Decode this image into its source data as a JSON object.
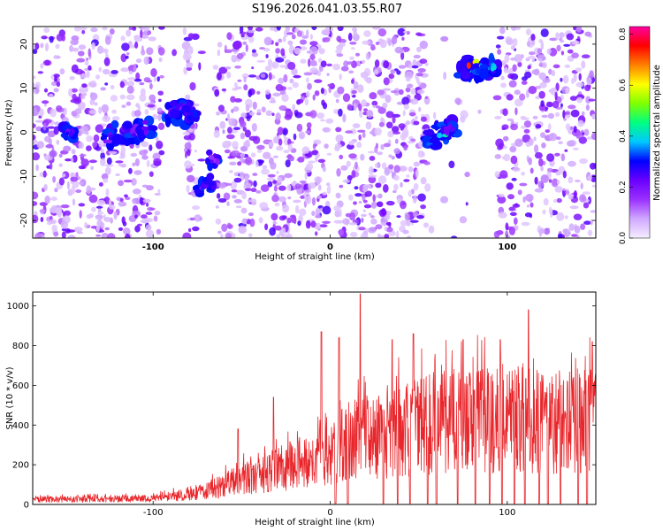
{
  "title": "S196.2026.041.03.55.R07",
  "chart_data": [
    {
      "type": "heatmap",
      "xlabel": "Height of straight line (km)",
      "ylabel": "Frequency (Hz)",
      "xlim": [
        -168,
        150
      ],
      "ylim": [
        -24,
        24
      ],
      "xticks": [
        -100,
        0,
        100
      ],
      "yticks": [
        -20,
        -10,
        0,
        10,
        20
      ],
      "colorbar": {
        "label": "Normalized spectral amplitude",
        "range": [
          0,
          0.83
        ],
        "ticks": [
          0.0,
          0.2,
          0.4,
          0.6,
          0.8
        ],
        "colormap": [
          "#f5eeff",
          "#d0a8ff",
          "#9b30ff",
          "#6a00ff",
          "#0000ff",
          "#00c8ff",
          "#00ff80",
          "#80ff00",
          "#ffff00",
          "#ff8000",
          "#ff0000",
          "#ff00a0"
        ]
      },
      "gaps_km": [
        [
          -95,
          -82
        ],
        [
          -75,
          -65
        ],
        [
          0,
          3
        ],
        [
          55,
          72
        ],
        [
          73,
          94
        ]
      ],
      "hotspots": [
        {
          "x": -148,
          "y": 0,
          "v": 0.3
        },
        {
          "x": -125,
          "y": -1,
          "v": 0.28
        },
        {
          "x": -118,
          "y": 0,
          "v": 0.3
        },
        {
          "x": -110,
          "y": 0,
          "v": 0.27
        },
        {
          "x": -103,
          "y": 1,
          "v": 0.28
        },
        {
          "x": -90,
          "y": 4,
          "v": 0.32
        },
        {
          "x": -84,
          "y": 5,
          "v": 0.28
        },
        {
          "x": -80,
          "y": 3,
          "v": 0.3
        },
        {
          "x": -70,
          "y": -12,
          "v": 0.32
        },
        {
          "x": -65,
          "y": -6,
          "v": 0.25
        },
        {
          "x": 58,
          "y": -2,
          "v": 0.4
        },
        {
          "x": 63,
          "y": 0,
          "v": 0.45
        },
        {
          "x": 68,
          "y": 1,
          "v": 0.3
        },
        {
          "x": 76,
          "y": 14,
          "v": 0.45
        },
        {
          "x": 80,
          "y": 15,
          "v": 0.82
        },
        {
          "x": 86,
          "y": 14,
          "v": 0.5
        },
        {
          "x": 91,
          "y": 15,
          "v": 0.4
        }
      ]
    },
    {
      "type": "line",
      "xlabel": "Height of straight line (km)",
      "ylabel": "SNR (10 * v/v)",
      "xlim": [
        -168,
        150
      ],
      "ylim": [
        0,
        1070
      ],
      "xticks": [
        -100,
        0,
        100
      ],
      "yticks": [
        0,
        200,
        400,
        600,
        800,
        1000
      ],
      "color": "#e8262b",
      "envelope_x": [
        -168,
        -100,
        -85,
        -70,
        -60,
        -50,
        -40,
        -30,
        -20,
        -10,
        0,
        10,
        20,
        30,
        40,
        50,
        60,
        70,
        80,
        90,
        100,
        110,
        120,
        130,
        140,
        150
      ],
      "envelope_mean": [
        25,
        30,
        45,
        70,
        100,
        130,
        150,
        190,
        200,
        210,
        250,
        330,
        350,
        360,
        380,
        410,
        420,
        430,
        440,
        440,
        430,
        450,
        430,
        440,
        430,
        430
      ],
      "peaks": [
        {
          "x": -52,
          "y": 380
        },
        {
          "x": -32,
          "y": 540
        },
        {
          "x": -5,
          "y": 870
        },
        {
          "x": 5,
          "y": 840
        },
        {
          "x": 17,
          "y": 1060
        },
        {
          "x": 35,
          "y": 830
        },
        {
          "x": 47,
          "y": 860
        },
        {
          "x": 75,
          "y": 830
        },
        {
          "x": 96,
          "y": 830
        },
        {
          "x": 112,
          "y": 980
        },
        {
          "x": 148,
          "y": 820
        }
      ],
      "dips_km": [
        3,
        10,
        30,
        38,
        45,
        55,
        60,
        72,
        82,
        90,
        97,
        104,
        110,
        118,
        123,
        130,
        140,
        145
      ]
    }
  ]
}
